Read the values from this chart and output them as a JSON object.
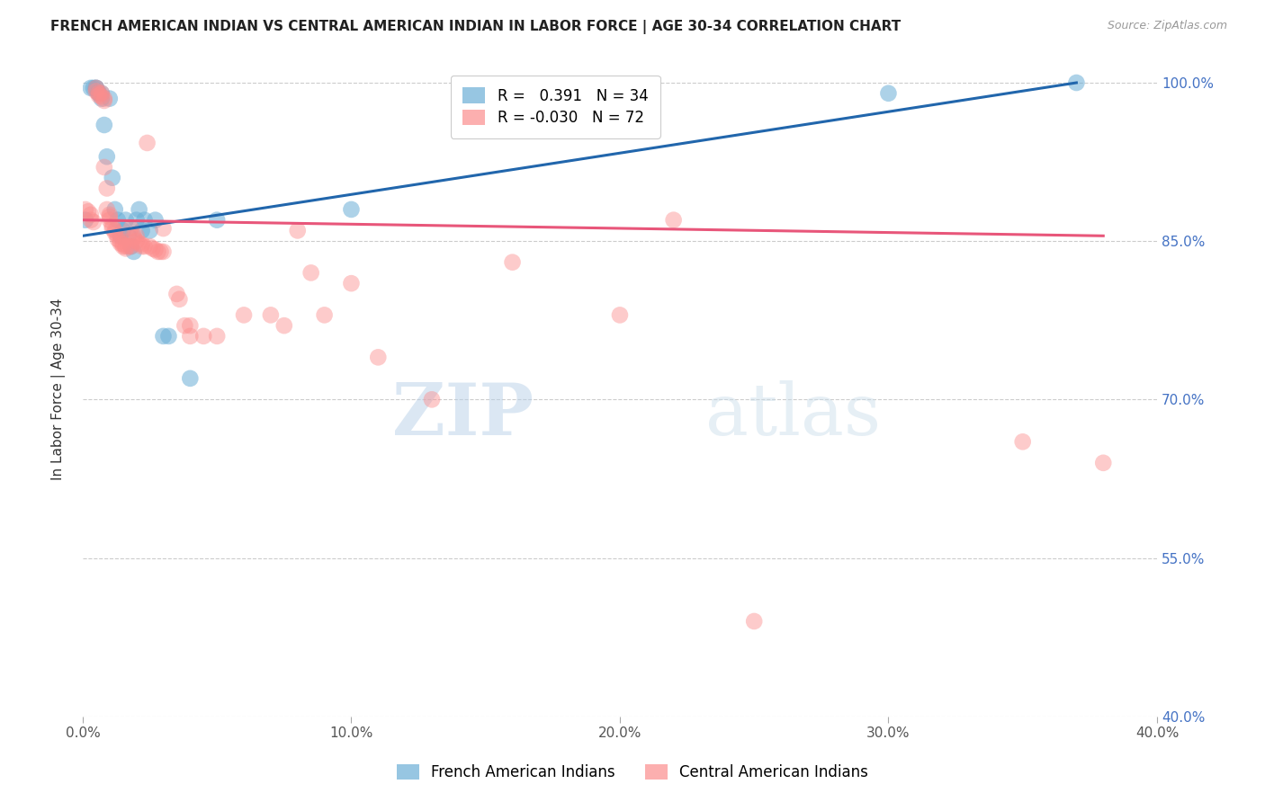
{
  "title": "FRENCH AMERICAN INDIAN VS CENTRAL AMERICAN INDIAN IN LABOR FORCE | AGE 30-34 CORRELATION CHART",
  "source": "Source: ZipAtlas.com",
  "ylabel": "In Labor Force | Age 30-34",
  "xlim": [
    0.0,
    0.4
  ],
  "ylim": [
    0.4,
    1.02
  ],
  "xticks": [
    0.0,
    0.1,
    0.2,
    0.3,
    0.4
  ],
  "xtick_labels": [
    "0.0%",
    "10.0%",
    "20.0%",
    "30.0%",
    "40.0%"
  ],
  "yticks": [
    0.4,
    0.55,
    0.7,
    0.85,
    1.0
  ],
  "ytick_labels": [
    "40.0%",
    "55.0%",
    "70.0%",
    "85.0%",
    "100.0%"
  ],
  "blue_R": 0.391,
  "blue_N": 34,
  "pink_R": -0.03,
  "pink_N": 72,
  "blue_color": "#6baed6",
  "pink_color": "#fc8d8d",
  "blue_line_color": "#2166ac",
  "pink_line_color": "#e8567a",
  "watermark_zip": "ZIP",
  "watermark_atlas": "atlas",
  "legend_label_blue": "French American Indians",
  "legend_label_pink": "Central American Indians",
  "blue_points": [
    [
      0.001,
      0.87
    ],
    [
      0.003,
      0.995
    ],
    [
      0.004,
      0.995
    ],
    [
      0.005,
      0.995
    ],
    [
      0.005,
      0.995
    ],
    [
      0.006,
      0.99
    ],
    [
      0.006,
      0.99
    ],
    [
      0.007,
      0.985
    ],
    [
      0.007,
      0.99
    ],
    [
      0.008,
      0.96
    ],
    [
      0.009,
      0.93
    ],
    [
      0.01,
      0.985
    ],
    [
      0.011,
      0.91
    ],
    [
      0.012,
      0.88
    ],
    [
      0.013,
      0.87
    ],
    [
      0.014,
      0.855
    ],
    [
      0.015,
      0.86
    ],
    [
      0.016,
      0.87
    ],
    [
      0.017,
      0.855
    ],
    [
      0.018,
      0.845
    ],
    [
      0.019,
      0.84
    ],
    [
      0.02,
      0.87
    ],
    [
      0.021,
      0.88
    ],
    [
      0.022,
      0.86
    ],
    [
      0.023,
      0.87
    ],
    [
      0.025,
      0.86
    ],
    [
      0.027,
      0.87
    ],
    [
      0.03,
      0.76
    ],
    [
      0.032,
      0.76
    ],
    [
      0.04,
      0.72
    ],
    [
      0.05,
      0.87
    ],
    [
      0.1,
      0.88
    ],
    [
      0.3,
      0.99
    ],
    [
      0.37,
      1.0
    ]
  ],
  "pink_points": [
    [
      0.001,
      0.88
    ],
    [
      0.002,
      0.878
    ],
    [
      0.003,
      0.875
    ],
    [
      0.003,
      0.87
    ],
    [
      0.004,
      0.868
    ],
    [
      0.005,
      0.995
    ],
    [
      0.005,
      0.992
    ],
    [
      0.006,
      0.99
    ],
    [
      0.006,
      0.988
    ],
    [
      0.007,
      0.99
    ],
    [
      0.007,
      0.987
    ],
    [
      0.008,
      0.985
    ],
    [
      0.008,
      0.983
    ],
    [
      0.008,
      0.92
    ],
    [
      0.009,
      0.9
    ],
    [
      0.009,
      0.88
    ],
    [
      0.01,
      0.875
    ],
    [
      0.01,
      0.873
    ],
    [
      0.01,
      0.87
    ],
    [
      0.011,
      0.865
    ],
    [
      0.011,
      0.862
    ],
    [
      0.012,
      0.86
    ],
    [
      0.012,
      0.858
    ],
    [
      0.013,
      0.855
    ],
    [
      0.013,
      0.852
    ],
    [
      0.014,
      0.85
    ],
    [
      0.014,
      0.848
    ],
    [
      0.015,
      0.847
    ],
    [
      0.015,
      0.845
    ],
    [
      0.016,
      0.845
    ],
    [
      0.016,
      0.843
    ],
    [
      0.017,
      0.845
    ],
    [
      0.018,
      0.845
    ],
    [
      0.018,
      0.862
    ],
    [
      0.019,
      0.855
    ],
    [
      0.019,
      0.853
    ],
    [
      0.02,
      0.855
    ],
    [
      0.02,
      0.85
    ],
    [
      0.021,
      0.848
    ],
    [
      0.022,
      0.847
    ],
    [
      0.022,
      0.845
    ],
    [
      0.023,
      0.845
    ],
    [
      0.024,
      0.943
    ],
    [
      0.025,
      0.845
    ],
    [
      0.026,
      0.843
    ],
    [
      0.027,
      0.842
    ],
    [
      0.028,
      0.84
    ],
    [
      0.029,
      0.84
    ],
    [
      0.03,
      0.84
    ],
    [
      0.03,
      0.862
    ],
    [
      0.035,
      0.8
    ],
    [
      0.036,
      0.795
    ],
    [
      0.038,
      0.77
    ],
    [
      0.04,
      0.76
    ],
    [
      0.04,
      0.77
    ],
    [
      0.045,
      0.76
    ],
    [
      0.05,
      0.76
    ],
    [
      0.06,
      0.78
    ],
    [
      0.07,
      0.78
    ],
    [
      0.075,
      0.77
    ],
    [
      0.08,
      0.86
    ],
    [
      0.085,
      0.82
    ],
    [
      0.09,
      0.78
    ],
    [
      0.1,
      0.81
    ],
    [
      0.11,
      0.74
    ],
    [
      0.13,
      0.7
    ],
    [
      0.16,
      0.83
    ],
    [
      0.2,
      0.78
    ],
    [
      0.22,
      0.87
    ],
    [
      0.25,
      0.49
    ],
    [
      0.35,
      0.66
    ],
    [
      0.38,
      0.64
    ]
  ]
}
